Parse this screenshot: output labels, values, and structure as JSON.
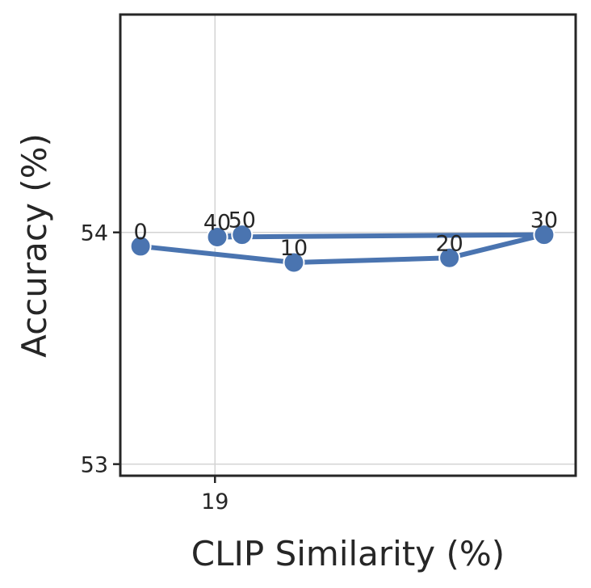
{
  "chart_data": {
    "type": "line",
    "title": "",
    "xlabel": "CLIP Similarity (%)",
    "ylabel": "Accuracy (%)",
    "xlim": [
      18.58,
      20.6
    ],
    "ylim": [
      52.95,
      54.94
    ],
    "xticks": [
      19
    ],
    "yticks": [
      53,
      54
    ],
    "xtick_labels": [
      "19"
    ],
    "ytick_labels": [
      "53",
      "54"
    ],
    "grid": true,
    "color": "#4a74b0",
    "series": [
      {
        "points": [
          {
            "x": 18.67,
            "y": 53.94,
            "label": "0"
          },
          {
            "x": 19.35,
            "y": 53.87,
            "label": "10"
          },
          {
            "x": 20.04,
            "y": 53.89,
            "label": "20"
          },
          {
            "x": 20.46,
            "y": 53.99,
            "label": "30"
          },
          {
            "x": 19.01,
            "y": 53.98,
            "label": "40"
          },
          {
            "x": 19.12,
            "y": 53.99,
            "label": "50"
          }
        ]
      }
    ]
  }
}
